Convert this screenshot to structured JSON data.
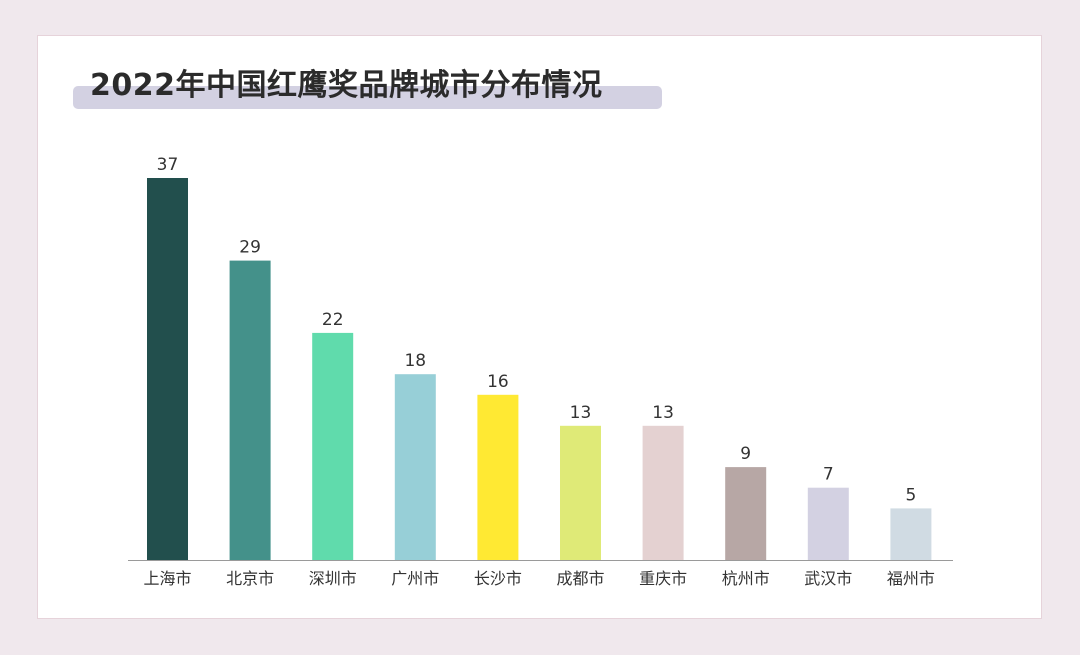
{
  "title": "2022年中国红鹰奖品牌城市分布情况",
  "chart_data": {
    "type": "bar",
    "categories": [
      "上海市",
      "北京市",
      "深圳市",
      "广州市",
      "长沙市",
      "成都市",
      "重庆市",
      "杭州市",
      "武汉市",
      "福州市"
    ],
    "values": [
      37,
      29,
      22,
      18,
      16,
      13,
      13,
      9,
      7,
      5
    ],
    "colors": [
      "#224f4d",
      "#44918a",
      "#60dbac",
      "#97cfd7",
      "#ffe933",
      "#dfea77",
      "#e4d1d1",
      "#b7a7a5",
      "#d3d1e2",
      "#d0dbe3"
    ],
    "ylim": [
      0,
      37
    ],
    "data_labels": true,
    "grid": false
  }
}
